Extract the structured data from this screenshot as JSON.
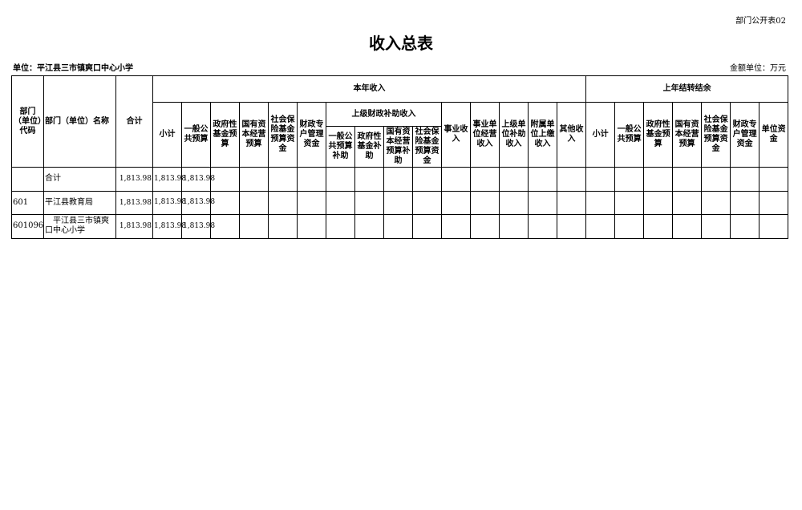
{
  "form_code": "部门公开表02",
  "title": "收入总表",
  "unit": "单位：平江县三市镇爽口中心小学",
  "money_unit": "金额单位：万元",
  "headers": {
    "code": "部门（单位）代码",
    "name": "部门（单位）名称",
    "total": "合计",
    "current_year": "本年收入",
    "prior_year": "上年结转结余",
    "subtotal": "小计",
    "general_budget": "一般公共预算",
    "gov_fund": "政府性基金预算",
    "state_capital": "国有资本经营预算",
    "social_security": "社会保险基金预算资金",
    "fiscal_special": "财政专户管理资金",
    "superior_subsidy": "上级财政补助收入",
    "sub_general": "一般公共预算补助",
    "sub_gov_fund": "政府性基金补助",
    "sub_state_capital": "国有资本经营预算补助",
    "sub_social": "社会保险基金预算资金",
    "business_income": "事业收入",
    "business_operating": "事业单位经营收入",
    "superior_unit": "上级单位补助收入",
    "affiliated": "附属单位上缴收入",
    "other": "其他收入",
    "prior_subtotal": "小计",
    "prior_general": "一般公共预算",
    "prior_gov_fund": "政府性基金预算",
    "prior_state_capital": "国有资本经营预算",
    "prior_social": "社会保险基金预算资金",
    "prior_fiscal_special": "财政专户管理资金",
    "prior_unit_fund": "单位资金"
  },
  "rows": [
    {
      "code": "",
      "name": "合计",
      "total": "1,813.98",
      "subtotal": "1,813.98",
      "general": "1,813.98"
    },
    {
      "code": "601",
      "name": "平江县教育局",
      "total": "1,813.98",
      "subtotal": "1,813.98",
      "general": "1,813.98"
    },
    {
      "code": "601096",
      "name": "　平江县三市镇爽口中心小学",
      "total": "1,813.98",
      "subtotal": "1,813.98",
      "general": "1,813.98"
    }
  ]
}
